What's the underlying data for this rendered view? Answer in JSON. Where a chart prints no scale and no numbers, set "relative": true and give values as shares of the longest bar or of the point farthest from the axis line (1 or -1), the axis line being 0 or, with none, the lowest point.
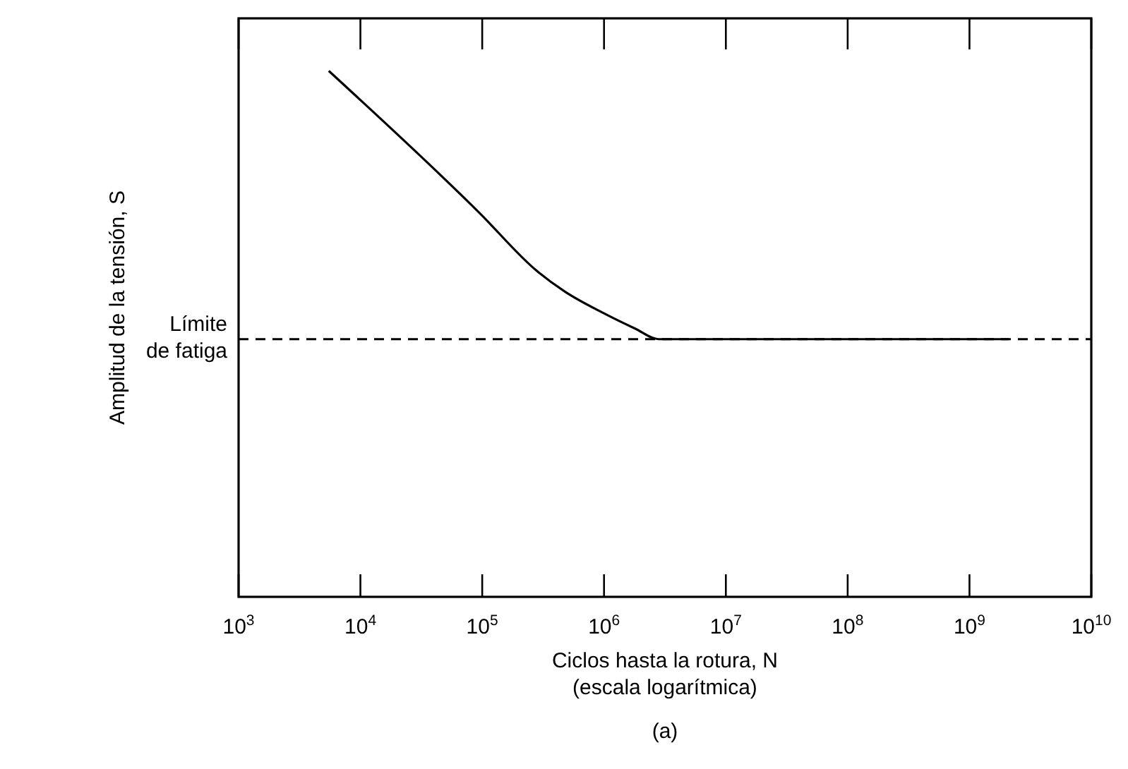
{
  "chart_data": {
    "type": "line",
    "relative": true,
    "log": "x",
    "xlabel": "Ciclos hasta la rotura, N\n(escala logarítmica)",
    "ylabel": "Amplitud de la tensión, S",
    "xlim": [
      1000,
      10000000000
    ],
    "xticks": [
      {
        "value": 1000,
        "label": "10$^{3}$"
      },
      {
        "value": 10000,
        "label": "10$^{4}$"
      },
      {
        "value": 100000,
        "label": "10$^{5}$"
      },
      {
        "value": 1000000,
        "label": "10$^{6}$"
      },
      {
        "value": 10000000,
        "label": "10$^{7}$"
      },
      {
        "value": 100000000,
        "label": "10$^{8}$"
      },
      {
        "value": 1000000000,
        "label": "10$^{9}$"
      },
      {
        "value": 10000000000,
        "label": "10$^{10}$"
      }
    ],
    "x": [
      5500,
      95000,
      280000,
      480000,
      980000,
      1800000,
      2800000,
      2100000000
    ],
    "series": [
      {
        "color": "#000000",
        "values": [
          1,
          0.73,
          0.62,
          0.58,
          0.54,
          0.51,
          0.49,
          0.49
        ]
      }
    ],
    "ref_lines": [
      {
        "axis": "y",
        "value": 0.49,
        "label": "Límite\nde fatiga",
        "color": "#000000",
        "line_style": "dashed"
      }
    ],
    "grid": false,
    "marker": "none",
    "line_style": "solid",
    "annotations": [
      "(a)"
    ]
  }
}
